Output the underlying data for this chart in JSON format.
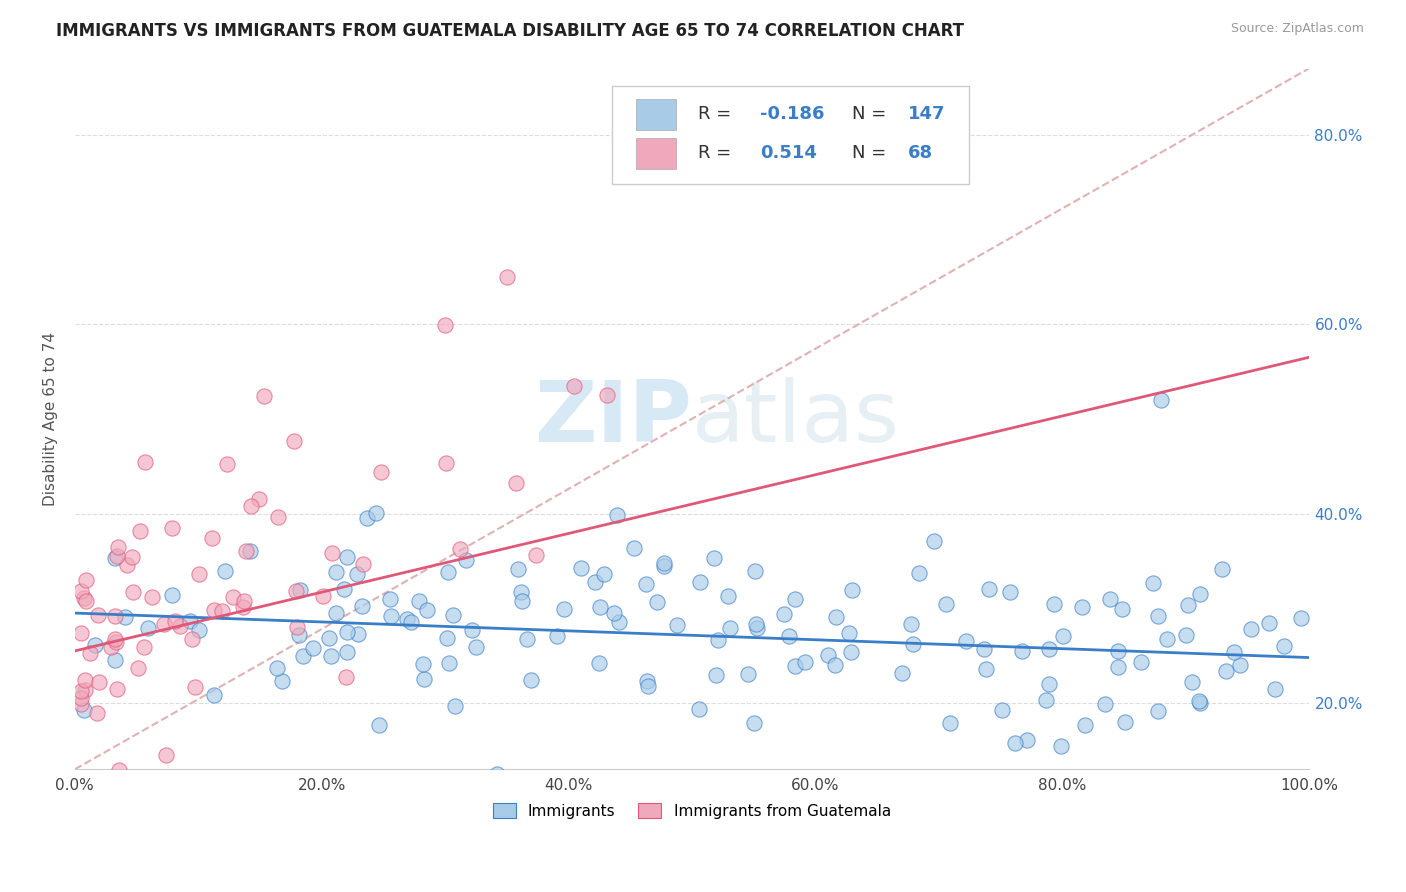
{
  "title": "IMMIGRANTS VS IMMIGRANTS FROM GUATEMALA DISABILITY AGE 65 TO 74 CORRELATION CHART",
  "source": "Source: ZipAtlas.com",
  "ylabel": "Disability Age 65 to 74",
  "xlim": [
    0.0,
    1.0
  ],
  "ylim": [
    0.13,
    0.87
  ],
  "xticks": [
    0.0,
    0.2,
    0.4,
    0.6,
    0.8,
    1.0
  ],
  "xticklabels": [
    "0.0%",
    "20.0%",
    "40.0%",
    "60.0%",
    "80.0%",
    "100.0%"
  ],
  "yticks": [
    0.2,
    0.4,
    0.6,
    0.8
  ],
  "yticklabels": [
    "20.0%",
    "40.0%",
    "60.0%",
    "80.0%"
  ],
  "blue_color": "#a8cce8",
  "pink_color": "#f0a8bc",
  "blue_line_color": "#3a7ec8",
  "pink_line_color": "#e05878",
  "ref_line_color": "#ddaaaa",
  "grid_color": "#dddddd",
  "watermark_color": "#d0e8f8",
  "background_color": "#ffffff",
  "blue_line_x": [
    0.0,
    1.0
  ],
  "blue_line_y": [
    0.295,
    0.248
  ],
  "pink_line_x": [
    0.0,
    1.0
  ],
  "pink_line_y": [
    0.255,
    0.565
  ],
  "ref_line_x": [
    0.0,
    1.0
  ],
  "ref_line_y": [
    0.13,
    0.87
  ],
  "legend_R1": "-0.186",
  "legend_N1": "147",
  "legend_R2": "0.514",
  "legend_N2": "68",
  "title_fontsize": 12,
  "axis_label_fontsize": 11,
  "tick_fontsize": 11,
  "legend_fontsize": 13
}
